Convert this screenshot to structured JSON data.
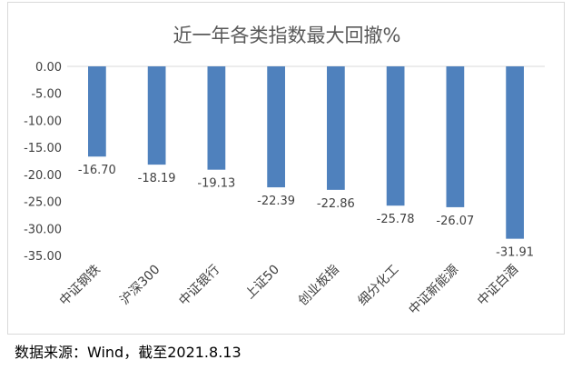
{
  "chart_data": {
    "type": "bar",
    "title": "近一年各类指数最大回撤%",
    "categories": [
      "中证钢铁",
      "沪深300",
      "中证银行",
      "上证50",
      "创业板指",
      "细分化工",
      "中证新能源",
      "中证白酒"
    ],
    "values": [
      -16.7,
      -18.19,
      -19.13,
      -22.39,
      -22.86,
      -25.78,
      -26.07,
      -31.91
    ],
    "data_labels": [
      "-16.70",
      "-18.19",
      "-19.13",
      "-22.39",
      "-22.86",
      "-25.78",
      "-26.07",
      "-31.91"
    ],
    "y_ticks": [
      "0.00",
      "-5.00",
      "-10.00",
      "-15.00",
      "-20.00",
      "-25.00",
      "-30.00",
      "-35.00"
    ],
    "ylim": [
      -35,
      0
    ],
    "xlabel": "",
    "ylabel": "",
    "grid": false,
    "legend": "none",
    "bar_color": "#4f81bd"
  },
  "footer": {
    "source": "数据来源：Wind，截至2021.8.13"
  }
}
